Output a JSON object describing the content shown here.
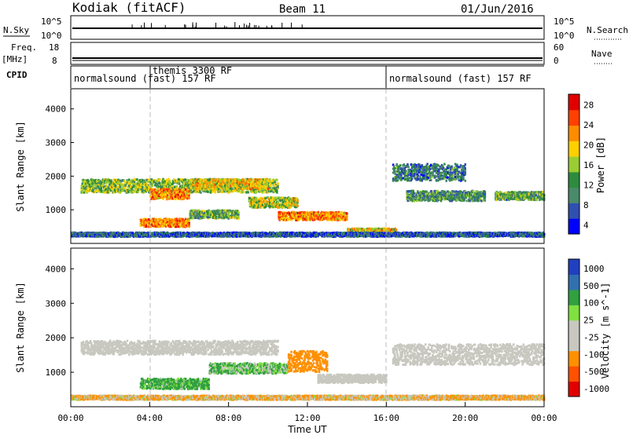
{
  "header": {
    "station": "Kodiak (fitACF)",
    "beam": "Beam 11",
    "date": "01/Jun/2016"
  },
  "sky_panel": {
    "left_label": "N.Sky",
    "left_ticks": [
      "10^5",
      "10^0"
    ],
    "right_label": "N.Search",
    "right_ticks": [
      "10^5",
      "10^0"
    ]
  },
  "freq_panel": {
    "left_label_1": "Freq.",
    "left_label_2": "[MHz]",
    "left_ticks": [
      "18",
      "8"
    ],
    "right_label": "Nave",
    "right_ticks": [
      "60",
      "0"
    ]
  },
  "cpid_panel": {
    "label": "CPID",
    "modes": [
      {
        "text": "normalsound (fast) 157 RF",
        "start_hour": 0
      },
      {
        "text": "themis 3300 RF",
        "start_hour": 4
      },
      {
        "text": "normalsound (fast) 157 RF",
        "start_hour": 16
      }
    ]
  },
  "colors": {
    "power_bar": [
      "#0000ff",
      "#3050b0",
      "#4a8a6a",
      "#2e8b3e",
      "#9acd32",
      "#ffd000",
      "#ff8c00",
      "#ff4000",
      "#e00000"
    ],
    "velocity_bar": [
      "#e00000",
      "#ff5000",
      "#ff9000",
      "#c8c8c0",
      "#c8c8c0",
      "#80e040",
      "#30a040",
      "#3070b0",
      "#2040c0"
    ],
    "ground_scatter": "#c8c8c0"
  },
  "chart_data": [
    {
      "type": "heatmap",
      "title": "",
      "xlabel": "Time UT",
      "ylabel": "Slant Range [km]",
      "x_ticks": [
        "00:00",
        "04:00",
        "08:00",
        "12:00",
        "16:00",
        "20:00",
        "00:00"
      ],
      "xlim_hours": [
        0,
        24
      ],
      "y_ticks": [
        1000,
        2000,
        3000,
        4000
      ],
      "ylim": [
        0,
        4600
      ],
      "colorbar_label": "Power [dB]",
      "colorbar_ticks": [
        "28",
        "24",
        "20",
        "16",
        "12",
        "8",
        "4"
      ],
      "colorbar_range": [
        0,
        30
      ],
      "features": [
        {
          "t_start": 0.5,
          "t_end": 10.5,
          "range_km": 1700,
          "spread_km": 200,
          "level_db": 14
        },
        {
          "t_start": 4.0,
          "t_end": 6.0,
          "range_km": 1450,
          "spread_km": 150,
          "level_db": 22
        },
        {
          "t_start": 6.0,
          "t_end": 10.0,
          "range_km": 1750,
          "spread_km": 150,
          "level_db": 18
        },
        {
          "t_start": 9.0,
          "t_end": 11.5,
          "range_km": 1200,
          "spread_km": 150,
          "level_db": 16
        },
        {
          "t_start": 10.5,
          "t_end": 14.0,
          "range_km": 800,
          "spread_km": 120,
          "level_db": 22
        },
        {
          "t_start": 3.5,
          "t_end": 6.0,
          "range_km": 600,
          "spread_km": 120,
          "level_db": 22
        },
        {
          "t_start": 6.0,
          "t_end": 8.5,
          "range_km": 850,
          "spread_km": 120,
          "level_db": 12
        },
        {
          "t_start": 14.0,
          "t_end": 16.5,
          "range_km": 350,
          "spread_km": 80,
          "level_db": 18
        },
        {
          "t_start": 16.3,
          "t_end": 20.0,
          "range_km": 2100,
          "spread_km": 250,
          "level_db": 8
        },
        {
          "t_start": 17.0,
          "t_end": 21.0,
          "range_km": 1400,
          "spread_km": 150,
          "level_db": 10
        },
        {
          "t_start": 21.5,
          "t_end": 24.0,
          "range_km": 1400,
          "spread_km": 120,
          "level_db": 12
        },
        {
          "t_start": 0.0,
          "t_end": 24.0,
          "range_km": 250,
          "spread_km": 60,
          "level_db": 6
        }
      ]
    },
    {
      "type": "heatmap",
      "title": "",
      "xlabel": "Time UT",
      "ylabel": "Slant Range [km]",
      "x_ticks": [
        "00:00",
        "04:00",
        "08:00",
        "12:00",
        "16:00",
        "20:00",
        "00:00"
      ],
      "xlim_hours": [
        0,
        24
      ],
      "y_ticks": [
        1000,
        2000,
        3000,
        4000
      ],
      "ylim": [
        0,
        4600
      ],
      "colorbar_label": "Velocity [m s^-1]",
      "colorbar_ticks": [
        "1000",
        "500",
        "100",
        "25",
        "-25",
        "-100",
        "-500",
        "-1000"
      ],
      "features": [
        {
          "t_start": 0.5,
          "t_end": 10.5,
          "range_km": 1700,
          "spread_km": 200,
          "velocity_ms": 0
        },
        {
          "t_start": 3.5,
          "t_end": 7.0,
          "range_km": 650,
          "spread_km": 150,
          "velocity_ms": 150
        },
        {
          "t_start": 7.0,
          "t_end": 11.0,
          "range_km": 1100,
          "spread_km": 150,
          "velocity_ms": 100
        },
        {
          "t_start": 11.0,
          "t_end": 13.0,
          "range_km": 1300,
          "spread_km": 300,
          "velocity_ms": -300
        },
        {
          "t_start": 12.5,
          "t_end": 16.0,
          "range_km": 800,
          "spread_km": 120,
          "velocity_ms": 0
        },
        {
          "t_start": 16.3,
          "t_end": 24.0,
          "range_km": 1500,
          "spread_km": 300,
          "velocity_ms": 0
        },
        {
          "t_start": 0.0,
          "t_end": 24.0,
          "range_km": 250,
          "spread_km": 60,
          "velocity_ms": -100
        }
      ]
    }
  ]
}
